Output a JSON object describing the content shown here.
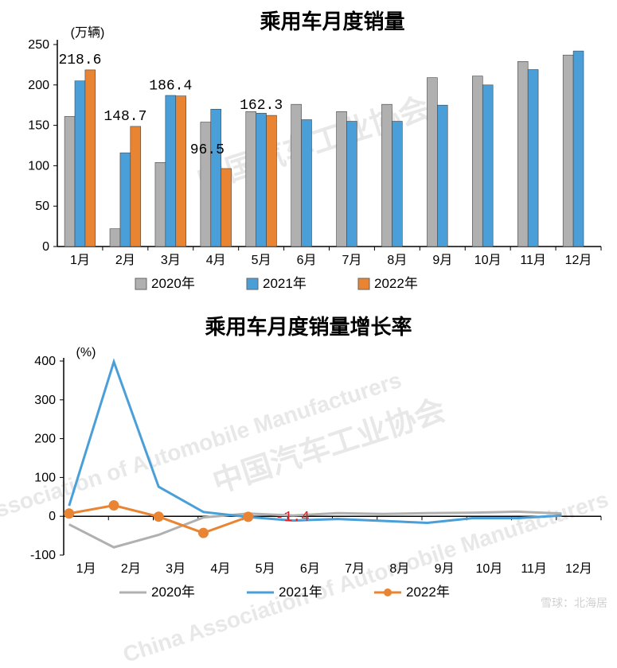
{
  "bar_chart": {
    "type": "bar",
    "title": "乘用车月度销量",
    "title_fontsize": 26,
    "y_unit_label": "(万辆)",
    "ylim": [
      0,
      250
    ],
    "ytick_step": 50,
    "yticks": [
      0,
      50,
      100,
      150,
      200,
      250
    ],
    "categories": [
      "1月",
      "2月",
      "3月",
      "4月",
      "5月",
      "6月",
      "7月",
      "8月",
      "9月",
      "10月",
      "11月",
      "12月"
    ],
    "series": [
      {
        "name": "2020年",
        "color": "#b0b0b0",
        "values": [
          161,
          22,
          104,
          154,
          167,
          176,
          167,
          176,
          209,
          211,
          229,
          237
        ]
      },
      {
        "name": "2021年",
        "color": "#4a9fd8",
        "values": [
          205,
          116,
          187,
          170,
          165,
          157,
          155,
          155,
          175,
          200,
          219,
          242
        ]
      },
      {
        "name": "2022年",
        "color": "#e88432",
        "values": [
          218.6,
          148.7,
          186.4,
          96.5,
          162.3,
          null,
          null,
          null,
          null,
          null,
          null,
          null
        ]
      }
    ],
    "data_labels": [
      {
        "month_index": 0,
        "value": "218.6"
      },
      {
        "month_index": 1,
        "value": "148.7"
      },
      {
        "month_index": 2,
        "value": "186.4"
      },
      {
        "month_index": 3,
        "value": "96.5"
      },
      {
        "month_index": 4,
        "value": "162.3"
      }
    ],
    "label_fontsize": 18,
    "tick_fontsize": 16,
    "legend_marker_border": "#666666",
    "axis_color": "#000000",
    "grid_color": "#000000",
    "bar_border_color": "#444444",
    "bar_group_width_ratio": 0.68,
    "background_color": "#ffffff"
  },
  "line_chart": {
    "type": "line",
    "title": "乘用车月度销量增长率",
    "title_fontsize": 26,
    "y_unit_label": "(%)",
    "ylim": [
      -100,
      400
    ],
    "ytick_step": 100,
    "yticks": [
      -100,
      0,
      100,
      200,
      300,
      400
    ],
    "categories": [
      "1月",
      "2月",
      "3月",
      "4月",
      "5月",
      "6月",
      "7月",
      "8月",
      "9月",
      "10月",
      "11月",
      "12月"
    ],
    "series": [
      {
        "name": "2020年",
        "color": "#b0b0b0",
        "line_width": 3,
        "marker": "none",
        "values": [
          -21,
          -80,
          -48,
          -3,
          7,
          2,
          8,
          6,
          8,
          9,
          12,
          7
        ]
      },
      {
        "name": "2021年",
        "color": "#4a9fd8",
        "line_width": 3,
        "marker": "none",
        "values": [
          27,
          398,
          76,
          11,
          -2,
          -11,
          -7,
          -12,
          -17,
          -5,
          -5,
          2
        ]
      },
      {
        "name": "2022年",
        "color": "#e88432",
        "line_width": 3,
        "marker": "circle",
        "marker_size": 6,
        "values": [
          7,
          28,
          -1,
          -43,
          -1.4,
          null,
          null,
          null,
          null,
          null,
          null,
          null
        ]
      }
    ],
    "callout": {
      "month_index": 4,
      "text": "-1.4",
      "color": "#e02020",
      "fontsize": 18
    },
    "tick_fontsize": 16,
    "axis_color": "#000000",
    "background_color": "#ffffff"
  },
  "watermarks": {
    "cn": "中国汽车工业协会",
    "en": "China Association of Automobile Manufacturers"
  },
  "footer": "雪球：北海居"
}
